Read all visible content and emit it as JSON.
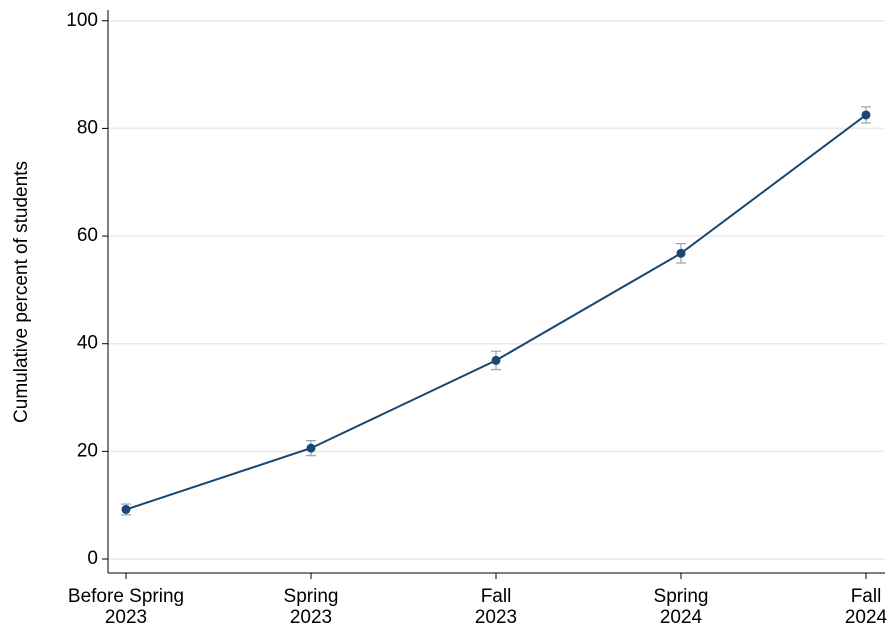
{
  "chart_data": {
    "type": "line",
    "y_label": "Cumulative percent of students",
    "categories": [
      [
        "Before Spring",
        "2023"
      ],
      [
        "Spring",
        "2023"
      ],
      [
        "Fall",
        "2023"
      ],
      [
        "Spring",
        "2024"
      ],
      [
        "Fall",
        "2024"
      ]
    ],
    "values": [
      9.2,
      20.6,
      36.9,
      56.8,
      82.5
    ],
    "errors": [
      1.0,
      1.4,
      1.7,
      1.8,
      1.5
    ],
    "color": "#1a476f",
    "error_color": "#8fa3b8",
    "ylim": [
      -2.6,
      102
    ],
    "yticks": [
      0,
      20,
      40,
      60,
      80,
      100
    ],
    "grid": true
  }
}
